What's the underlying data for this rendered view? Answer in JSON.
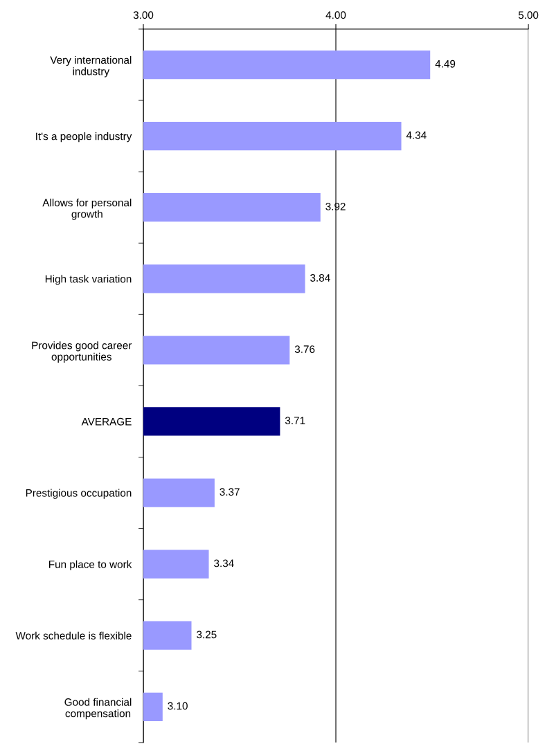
{
  "chart_data": {
    "type": "bar",
    "orientation": "horizontal",
    "categories": [
      "Very international\nindustry",
      "It's a people industry",
      "Allows for personal\ngrowth",
      "High task variation",
      "Provides good career\nopportunities",
      "AVERAGE",
      "Prestigious occupation",
      "Fun place to work",
      "Work schedule is flexible",
      "Good financial\ncompensation"
    ],
    "values": [
      4.49,
      4.34,
      3.92,
      3.84,
      3.76,
      3.71,
      3.37,
      3.34,
      3.25,
      3.1
    ],
    "colors": [
      "#9999ff",
      "#9999ff",
      "#9999ff",
      "#9999ff",
      "#9999ff",
      "#000080",
      "#9999ff",
      "#9999ff",
      "#9999ff",
      "#9999ff"
    ],
    "value_labels": [
      "4.49",
      "4.34",
      "3.92",
      "3.84",
      "3.76",
      "3.71",
      "3.37",
      "3.34",
      "3.25",
      "3.10"
    ],
    "xlim": [
      3,
      5
    ],
    "xticks": [
      {
        "value": 3,
        "label": "3.00"
      },
      {
        "value": 4,
        "label": "4.00"
      },
      {
        "value": 5,
        "label": "5.00"
      }
    ],
    "grid": "x",
    "legend": false
  }
}
